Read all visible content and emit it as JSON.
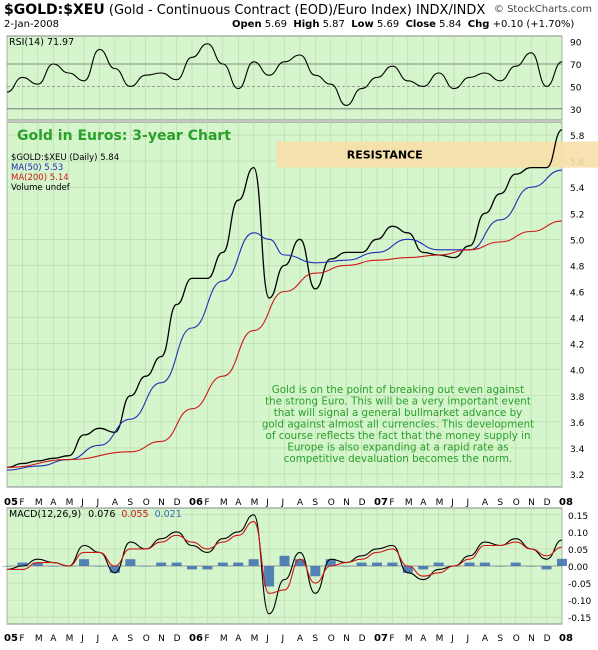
{
  "header": {
    "symbol": "$GOLD:$XEU",
    "description": "(Gold - Continuous Contract (EOD)/Euro Index)  INDX/INDX",
    "date": "2-Jan-2008",
    "open_label": "Open",
    "open": "5.69",
    "high_label": "High",
    "high": "5.87",
    "low_label": "Low",
    "low": "5.69",
    "close_label": "Close",
    "close": "5.84",
    "chg_label": "Chg",
    "chg": "+0.10 (+1.70%)",
    "source": "© StockCharts.com"
  },
  "chart_data": [
    {
      "type": "line",
      "panel": "rsi",
      "legend": "RSI(14) 71.97",
      "ylim": [
        20,
        95
      ],
      "tick_labels": [
        "90",
        "70",
        "50",
        "30"
      ],
      "tick_values": [
        90,
        70,
        50,
        30
      ],
      "reference_lines": [
        70,
        50,
        30
      ],
      "series": [
        {
          "name": "RSI(14)",
          "color": "#000000",
          "x": [
            0,
            1,
            2,
            3,
            4,
            5,
            6,
            7,
            8,
            9,
            10,
            11,
            12,
            13,
            14,
            15,
            16,
            17,
            18,
            19,
            20,
            21,
            22,
            23,
            24,
            25,
            26,
            27,
            28,
            29,
            30,
            31,
            32,
            33,
            34,
            35,
            36
          ],
          "values": [
            45,
            58,
            52,
            70,
            62,
            55,
            83,
            66,
            50,
            60,
            62,
            56,
            76,
            88,
            70,
            48,
            72,
            60,
            72,
            78,
            60,
            52,
            33,
            48,
            58,
            68,
            55,
            50,
            62,
            48,
            58,
            62,
            55,
            68,
            80,
            50,
            72
          ]
        }
      ]
    },
    {
      "type": "line",
      "panel": "price",
      "title": "Gold in Euros: 3-year Chart",
      "legend": [
        {
          "label": "$GOLD:$XEU (Daily) 5.84",
          "color": "#000000"
        },
        {
          "label": "MA(50) 5.53",
          "color": "#1f2fb8"
        },
        {
          "label": "MA(200) 5.14",
          "color": "#d01818"
        },
        {
          "label": "Volume undef",
          "color": "#000000"
        }
      ],
      "ylim": [
        3.1,
        5.9
      ],
      "yticks": [
        3.2,
        3.4,
        3.6,
        3.8,
        4.0,
        4.2,
        4.4,
        4.6,
        4.8,
        5.0,
        5.2,
        5.4,
        5.6,
        5.8
      ],
      "ytick_labels": [
        "3.2",
        "3.4",
        "3.6",
        "3.8",
        "4.0",
        "4.2",
        "4.4",
        "4.6",
        "4.8",
        "5.0",
        "5.2",
        "5.4",
        "5.6",
        "5.8"
      ],
      "x_labels": [
        "05",
        "F",
        "M",
        "A",
        "M",
        "J",
        "J",
        "A",
        "S",
        "O",
        "N",
        "D",
        "06",
        "F",
        "M",
        "A",
        "M",
        "J",
        "J",
        "A",
        "S",
        "O",
        "N",
        "D",
        "07",
        "F",
        "M",
        "A",
        "M",
        "J",
        "J",
        "A",
        "S",
        "O",
        "N",
        "D",
        "08"
      ],
      "resistance": {
        "label": "RESISTANCE",
        "from": 5.55,
        "to": 5.75
      },
      "series": [
        {
          "name": "$GOLD:$XEU",
          "color": "#000000",
          "x": [
            0,
            1,
            2,
            3,
            4,
            5,
            6,
            7,
            8,
            9,
            10,
            11,
            12,
            13,
            14,
            15,
            16,
            17,
            18,
            19,
            20,
            21,
            22,
            23,
            24,
            25,
            26,
            27,
            28,
            29,
            30,
            31,
            32,
            33,
            34,
            35,
            36
          ],
          "values": [
            3.25,
            3.28,
            3.3,
            3.32,
            3.34,
            3.5,
            3.55,
            3.52,
            3.8,
            3.95,
            4.1,
            4.5,
            4.7,
            4.7,
            4.9,
            5.3,
            5.55,
            4.55,
            4.8,
            5.0,
            4.62,
            4.85,
            4.9,
            4.9,
            5.0,
            5.1,
            5.05,
            4.9,
            4.88,
            4.86,
            4.95,
            5.2,
            5.35,
            5.5,
            5.55,
            5.55,
            5.84
          ]
        },
        {
          "name": "MA(50)",
          "color": "#1f2fb8",
          "x": [
            0,
            2,
            4,
            6,
            8,
            10,
            12,
            14,
            16,
            17,
            18,
            20,
            22,
            24,
            26,
            28,
            30,
            32,
            34,
            36
          ],
          "values": [
            3.23,
            3.26,
            3.31,
            3.42,
            3.62,
            3.9,
            4.32,
            4.68,
            5.05,
            5.0,
            4.88,
            4.82,
            4.84,
            4.9,
            5.0,
            4.92,
            4.92,
            5.15,
            5.4,
            5.53
          ]
        },
        {
          "name": "MA(200)",
          "color": "#d01818",
          "x": [
            0,
            4,
            8,
            10,
            12,
            14,
            16,
            18,
            20,
            22,
            24,
            26,
            28,
            30,
            32,
            34,
            36
          ],
          "values": [
            3.25,
            3.31,
            3.37,
            3.45,
            3.7,
            3.95,
            4.3,
            4.6,
            4.74,
            4.8,
            4.84,
            4.86,
            4.88,
            4.92,
            4.98,
            5.06,
            5.14
          ]
        }
      ],
      "annotation": "Gold is on the point of breaking out even against the strong Euro. This will be a very important event that will signal a general bullmarket advance by gold against almost all currencies. This development of course reflects the fact that the money supply in Europe is also expanding at a rapid rate as competitive devaluation becomes the norm."
    },
    {
      "type": "line",
      "panel": "macd",
      "legend": {
        "prefix": "MACD(12,26,9)",
        "macd": "0.076",
        "signal": "0.055",
        "hist": "0.021"
      },
      "ylim": [
        -0.17,
        0.17
      ],
      "yticks": [
        0.15,
        0.1,
        0.05,
        0.0,
        -0.05,
        -0.1,
        -0.15
      ],
      "ytick_labels": [
        "0.15",
        "0.10",
        "0.05",
        "0.00",
        "-0.05",
        "-0.10",
        "-0.15"
      ],
      "x_labels": [
        "05",
        "F",
        "M",
        "A",
        "M",
        "J",
        "J",
        "A",
        "S",
        "O",
        "N",
        "D",
        "06",
        "F",
        "M",
        "A",
        "M",
        "J",
        "J",
        "A",
        "S",
        "O",
        "N",
        "D",
        "07",
        "F",
        "M",
        "A",
        "M",
        "J",
        "J",
        "A",
        "S",
        "O",
        "N",
        "D",
        "08"
      ],
      "series": [
        {
          "name": "MACD",
          "color": "#000000",
          "x": [
            0,
            1,
            2,
            3,
            4,
            5,
            6,
            7,
            8,
            9,
            10,
            11,
            12,
            13,
            14,
            15,
            16,
            17,
            18,
            19,
            20,
            21,
            22,
            23,
            24,
            25,
            26,
            27,
            28,
            29,
            30,
            31,
            32,
            33,
            34,
            35,
            36
          ],
          "values": [
            -0.01,
            0.0,
            0.02,
            0.01,
            0.0,
            0.06,
            0.04,
            -0.02,
            0.07,
            0.05,
            0.08,
            0.1,
            0.06,
            0.04,
            0.08,
            0.1,
            0.15,
            -0.14,
            -0.04,
            0.04,
            -0.08,
            0.02,
            0.01,
            0.03,
            0.05,
            0.06,
            -0.02,
            -0.04,
            -0.01,
            0.0,
            0.03,
            0.07,
            0.06,
            0.08,
            0.05,
            0.02,
            0.076
          ]
        },
        {
          "name": "Signal",
          "color": "#d01818",
          "x": [
            0,
            1,
            2,
            3,
            4,
            5,
            6,
            7,
            8,
            9,
            10,
            11,
            12,
            13,
            14,
            15,
            16,
            17,
            18,
            19,
            20,
            21,
            22,
            23,
            24,
            25,
            26,
            27,
            28,
            29,
            30,
            31,
            32,
            33,
            34,
            35,
            36
          ],
          "values": [
            -0.01,
            -0.01,
            0.01,
            0.01,
            0.0,
            0.04,
            0.04,
            0.0,
            0.05,
            0.05,
            0.07,
            0.09,
            0.07,
            0.05,
            0.07,
            0.09,
            0.13,
            -0.08,
            -0.07,
            0.02,
            -0.05,
            0.0,
            0.01,
            0.02,
            0.04,
            0.05,
            0.0,
            -0.03,
            -0.02,
            0.0,
            0.02,
            0.06,
            0.06,
            0.07,
            0.05,
            0.03,
            0.055
          ]
        }
      ]
    }
  ]
}
